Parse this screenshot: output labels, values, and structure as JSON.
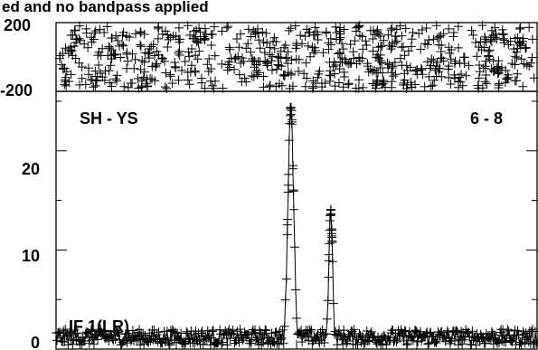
{
  "figure": {
    "title": "ed and no bandpass applied"
  },
  "chart_data": [
    {
      "type": "scatter",
      "panel": "phase",
      "ylim": [
        -200,
        200
      ],
      "y_tick_labels": [
        "200",
        "-200"
      ],
      "marker": "plus",
      "series": [
        {
          "values_description": "uniformly scattered phase values between -200 and 200 across the whole band"
        }
      ]
    },
    {
      "type": "line",
      "panel": "amplitude",
      "baseline_label": "SH - YS",
      "channel_label": "6 - 8",
      "partial_label": "IF 1(LR)",
      "ylim": [
        0,
        26
      ],
      "y_tick_labels": [
        "20",
        "10",
        "0"
      ],
      "marker": "plus",
      "peaks": [
        {
          "x": 0.488,
          "y": 24.5,
          "halfwidth": 0.006
        },
        {
          "x": 0.571,
          "y": 14.0,
          "halfwidth": 0.004
        }
      ],
      "noise_level": 1.0,
      "xlim": [
        0,
        1
      ]
    }
  ]
}
